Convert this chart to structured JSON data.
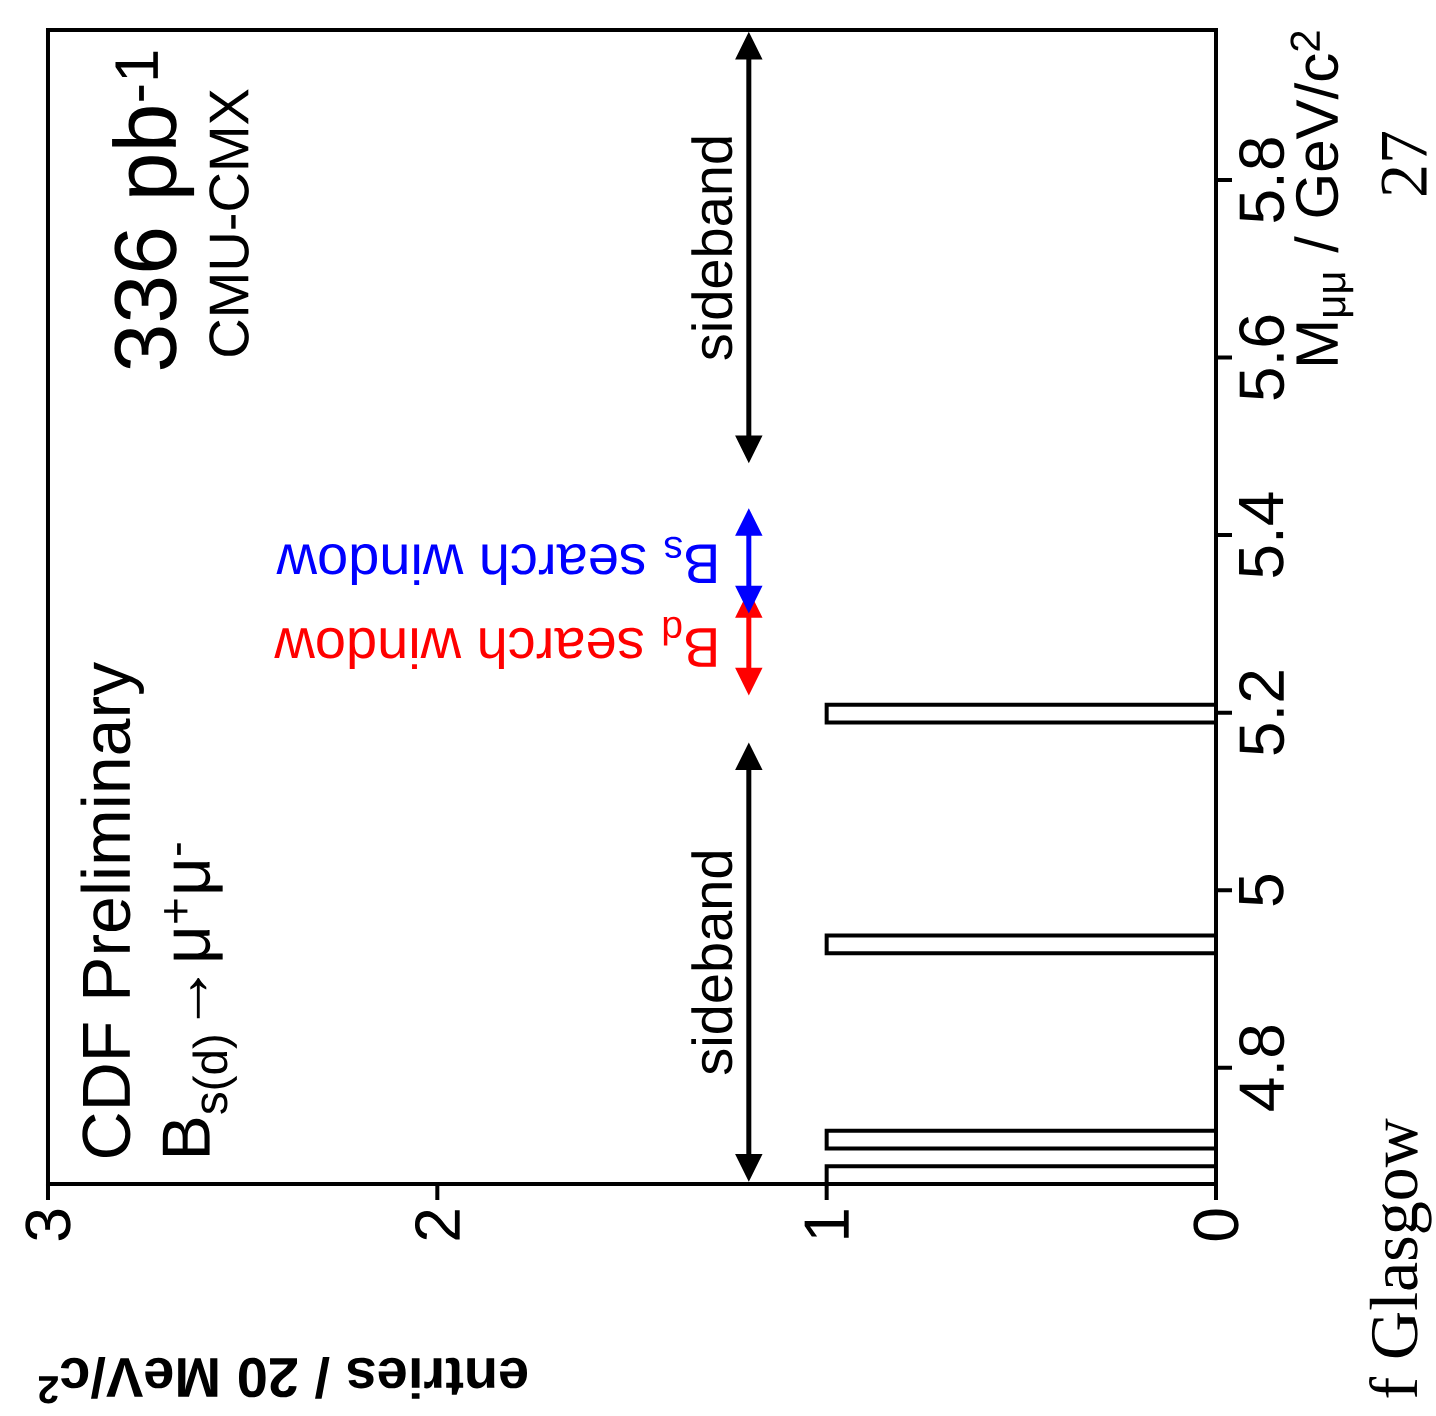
{
  "chart_data": {
    "type": "histogram",
    "orientation": "horizontal",
    "title": "CDF Preliminary",
    "subtitle": "B$_{s(d)}$→μ$^{+}$μ$^{-}$",
    "xlabel": "entries / 20 MeV/c$^{2}$",
    "ylabel": "M$_{μμ}$ / GeV/c$^{2}$",
    "annotations": [
      "336 pb$^{-1}$",
      "CMU-CMX",
      "27",
      "f Glasgow",
      "sideband",
      "B$_{d}$ search window",
      "B$_{s}$ search window",
      "sideband"
    ],
    "bins": [
      4.669,
      4.689,
      4.709,
      4.729,
      4.749,
      4.769,
      4.789,
      4.809,
      4.829,
      4.849,
      4.869,
      4.889,
      4.909,
      4.929,
      4.949,
      4.969,
      4.989,
      5.009,
      5.029,
      5.049,
      5.069,
      5.089,
      5.109,
      5.129,
      5.149,
      5.169,
      5.189,
      5.209,
      5.229,
      5.249,
      5.269,
      5.289,
      5.309,
      5.329,
      5.349,
      5.369,
      5.389,
      5.409,
      5.429,
      5.449,
      5.469,
      5.489,
      5.509,
      5.529,
      5.549,
      5.569,
      5.589,
      5.609,
      5.629,
      5.649,
      5.669,
      5.689,
      5.709,
      5.729,
      5.749,
      5.769,
      5.789,
      5.809,
      5.829,
      5.849,
      5.869,
      5.889,
      5.909,
      5.929,
      5.949,
      5.969
    ],
    "values": [
      1,
      0,
      1,
      0,
      0,
      0,
      0,
      0,
      0,
      0,
      0,
      0,
      0,
      1,
      0,
      0,
      0,
      0,
      0,
      0,
      0,
      0,
      0,
      0,
      0,
      0,
      1,
      0,
      0,
      0,
      0,
      0,
      0,
      0,
      0,
      0,
      0,
      0,
      0,
      0,
      0,
      0,
      0,
      0,
      0,
      0,
      0,
      0,
      0,
      0,
      0,
      0,
      0,
      0,
      0,
      0,
      0,
      0,
      0,
      0,
      0,
      0,
      0,
      0,
      0
    ],
    "color": "#000000",
    "xlim": [
      3,
      0
    ],
    "ylim": [
      4.669,
      5.969
    ],
    "xticks": [
      0,
      1,
      2,
      3
    ],
    "yticks": [
      4.8,
      5,
      5.2,
      5.4,
      5.6,
      5.8
    ]
  }
}
